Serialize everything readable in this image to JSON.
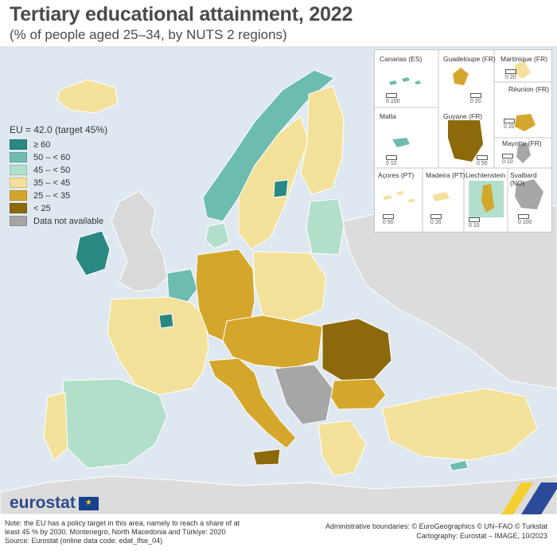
{
  "header": {
    "title": "Tertiary educational attainment, 2022",
    "subtitle": "(% of people aged 25–34, by NUTS 2 regions)"
  },
  "legend": {
    "title": "EU = 42.0 (target 45%)",
    "items": [
      {
        "label": "≥ 60",
        "color": "#2a8883"
      },
      {
        "label": "50 – < 60",
        "color": "#6dbcb0"
      },
      {
        "label": "45 – < 50",
        "color": "#b2dfc9"
      },
      {
        "label": "35 – < 45",
        "color": "#f3e19b"
      },
      {
        "label": "25 – < 35",
        "color": "#d4a72c"
      },
      {
        "label": "< 25",
        "color": "#8c6a0c"
      },
      {
        "label": "Data not available",
        "color": "#a6a6a6"
      }
    ]
  },
  "insets": {
    "canarias": {
      "label": "Canarias (ES)",
      "scale": "0  100"
    },
    "guadeloupe": {
      "label": "Guadeloupe (FR)",
      "scale": "0  20"
    },
    "martinique": {
      "label": "Martinique (FR)",
      "scale": "0  20"
    },
    "reunion": {
      "label": "Réunion (FR)",
      "scale": "0  20"
    },
    "malta": {
      "label": "Malta",
      "scale": "0  10"
    },
    "guyane": {
      "label": "Guyane (FR)",
      "scale": "0  50"
    },
    "mayotte": {
      "label": "Mayotte (FR)",
      "scale": "0  10"
    },
    "acores": {
      "label": "Açores (PT)",
      "scale": "0  50"
    },
    "madeira": {
      "label": "Madeira (PT)",
      "scale": "0  20"
    },
    "liechtenstein": {
      "label": "Liechtenstein",
      "scale": "0  10"
    },
    "svalbard": {
      "label": "Svalbard (NO)",
      "scale": "0  100"
    }
  },
  "footer": {
    "logo": "eurostat",
    "note_lines": [
      "Note: the EU has a policy target in this area, namely to reach a share of at",
      "least 45 % by 2030. Montenegro, North Macedonia and Türkiye: 2020",
      "Source: Eurostat (online data code: edat_lfse_04)"
    ],
    "credit_lines": [
      "Administrative boundaries: © EuroGeographics © UN–FAO © Turkstat",
      "Cartography: Eurostat – IMAGE, 10/2023"
    ]
  },
  "colors": {
    "sea": "#dfe8f0",
    "non_eu": "#dcdcdc",
    "brand": "#2d4b8c"
  }
}
